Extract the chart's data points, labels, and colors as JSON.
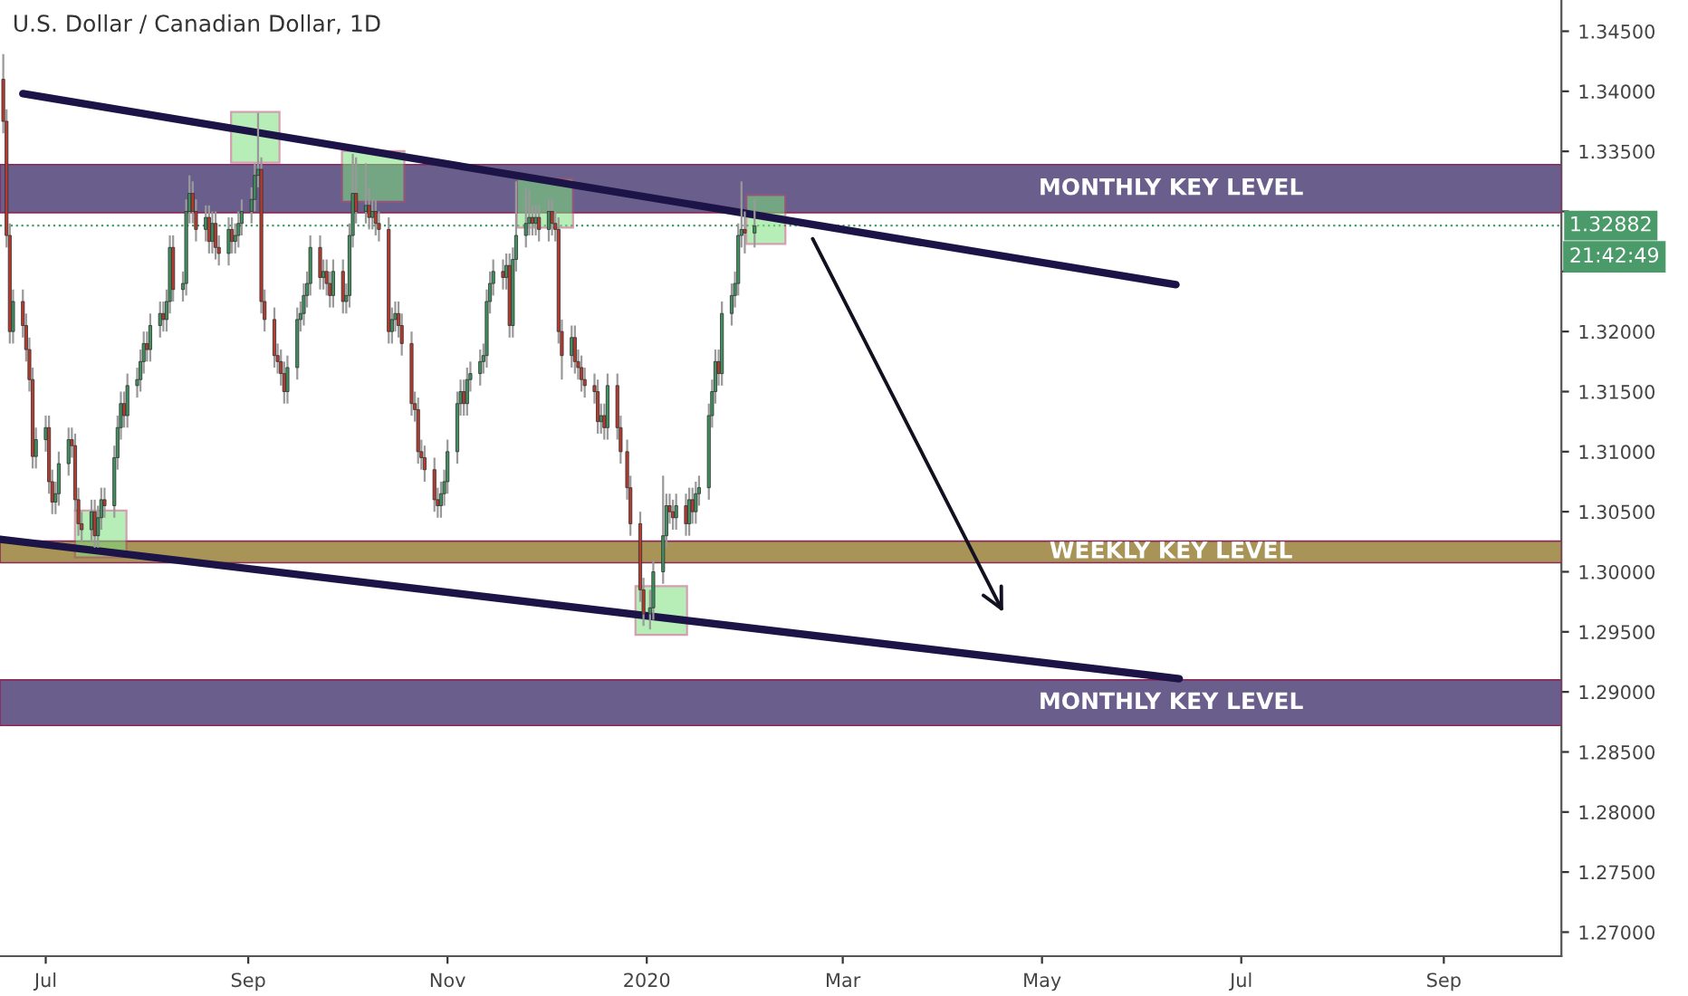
{
  "chart_data": {
    "type": "candlestick",
    "title": "U.S. Dollar / Canadian Dollar, 1D",
    "series": [
      {
        "colors": [
          "#b83a2e",
          "#b83a2e",
          "#b83a2e",
          "#3f9160",
          "#b83a2e",
          "#b83a2e",
          "#b83a2e",
          "#b83a2e",
          "#3f9160",
          "#3f9160",
          "#b83a2e",
          "#b83a2e",
          "#3f9160",
          "#3f9160",
          "#3f9160",
          "#b83a2e",
          "#b83a2e",
          "#b83a2e",
          "#b83a2e",
          "#3f9160",
          "#b83a2e",
          "#3f9160",
          "#3f9160",
          "#b83a2e",
          "#3f9160",
          "#3f9160",
          "#3f9160",
          "#b83a2e",
          "#3f9160",
          "#3f9160",
          "#3f9160",
          "#3f9160",
          "#b83a2e",
          "#3f9160",
          "#3f9160",
          "#b83a2e",
          "#3f9160",
          "#3f9160",
          "#b83a2e",
          "#3f9160",
          "#3f9160",
          "#3f9160",
          "#b83a2e",
          "#b83a2e",
          "#3f9160",
          "#b83a2e",
          "#3f9160",
          "#b83a2e",
          "#b83a2e",
          "#3f9160",
          "#b83a2e",
          "#3f9160",
          "#3f9160",
          "#3f9160",
          "#3f9160",
          "#3f9160",
          "#3f9160",
          "#b83a2e",
          "#b83a2e",
          "#b83a2e",
          "#b83a2e",
          "#b83a2e",
          "#b83a2e",
          "#3f9160",
          "#3f9160",
          "#3f9160",
          "#3f9160",
          "#3f9160",
          "#3f9160",
          "#b83a2e",
          "#3f9160",
          "#b83a2e",
          "#b83a2e",
          "#3f9160",
          "#b83a2e",
          "#3f9160",
          "#3f9160",
          "#3f9160",
          "#b83a2e",
          "#3f9160",
          "#b83a2e",
          "#3f9160",
          "#b83a2e",
          "#b83a2e",
          "#b83a2e",
          "#3f9160",
          "#3f9160",
          "#b83a2e",
          "#b83a2e",
          "#b83a2e",
          "#b83a2e",
          "#b83a2e",
          "#b83a2e",
          "#b83a2e",
          "#b83a2e",
          "#b83a2e",
          "#3f9160",
          "#3f9160",
          "#3f9160",
          "#3f9160",
          "#3f9160",
          "#b83a2e",
          "#3f9160",
          "#3f9160",
          "#3f9160",
          "#3f9160",
          "#3f9160",
          "#3f9160",
          "#3f9160",
          "#b83a2e",
          "#3f9160",
          "#b83a2e",
          "#3f9160",
          "#3f9160",
          "#3f9160",
          "#3f9160",
          "#b83a2e",
          "#3f9160",
          "#b83a2e",
          "#3f9160",
          "#b83a2e",
          "#b83a2e",
          "#b83a2e",
          "#b83a2e",
          "#3f9160",
          "#b83a2e",
          "#b83a2e",
          "#b83a2e",
          "#b83a2e",
          "#b83a2e",
          "#b83a2e",
          "#3f9160",
          "#b83a2e",
          "#3f9160",
          "#b83a2e",
          "#b83a2e",
          "#b83a2e",
          "#b83a2e",
          "#b83a2e",
          "#b83a2e",
          "#3f9160",
          "#3f9160",
          "#3f9160",
          "#3f9160",
          "#b83a2e",
          "#b83a2e",
          "#3f9160",
          "#b83a2e",
          "#3f9160",
          "#b83a2e",
          "#3f9160",
          "#3f9160",
          "#3f9160",
          "#3f9160",
          "#3f9160",
          "#b83a2e",
          "#3f9160",
          "#3f9160",
          "#3f9160",
          "#3f9160",
          "#3f9160",
          "#b83a2e",
          "#3f9160"
        ],
        "x": [
          "2019-06-18",
          "2019-06-19",
          "2019-06-20",
          "2019-06-21",
          "2019-06-24",
          "2019-06-25",
          "2019-06-26",
          "2019-06-27",
          "2019-06-28",
          "2019-07-01",
          "2019-07-02",
          "2019-07-03",
          "2019-07-04",
          "2019-07-05",
          "2019-07-08",
          "2019-07-09",
          "2019-07-10",
          "2019-07-11",
          "2019-07-12",
          "2019-07-15",
          "2019-07-16",
          "2019-07-17",
          "2019-07-18",
          "2019-07-19",
          "2019-07-22",
          "2019-07-23",
          "2019-07-24",
          "2019-07-25",
          "2019-07-26",
          "2019-07-29",
          "2019-07-30",
          "2019-07-31",
          "2019-08-01",
          "2019-08-02",
          "2019-08-05",
          "2019-08-06",
          "2019-08-07",
          "2019-08-08",
          "2019-08-09",
          "2019-08-12",
          "2019-08-13",
          "2019-08-14",
          "2019-08-15",
          "2019-08-16",
          "2019-08-19",
          "2019-08-20",
          "2019-08-21",
          "2019-08-22",
          "2019-08-23",
          "2019-08-26",
          "2019-08-27",
          "2019-08-28",
          "2019-08-29",
          "2019-08-30",
          "2019-09-02",
          "2019-09-03",
          "2019-09-04",
          "2019-09-05",
          "2019-09-06",
          "2019-09-09",
          "2019-09-10",
          "2019-09-11",
          "2019-09-12",
          "2019-09-13",
          "2019-09-16",
          "2019-09-17",
          "2019-09-18",
          "2019-09-19",
          "2019-09-20",
          "2019-09-23",
          "2019-09-24",
          "2019-09-25",
          "2019-09-26",
          "2019-09-27",
          "2019-09-30",
          "2019-10-01",
          "2019-10-02",
          "2019-10-03",
          "2019-10-04",
          "2019-10-07",
          "2019-10-08",
          "2019-10-09",
          "2019-10-10",
          "2019-10-11",
          "2019-10-14",
          "2019-10-15",
          "2019-10-16",
          "2019-10-17",
          "2019-10-18",
          "2019-10-21",
          "2019-10-22",
          "2019-10-23",
          "2019-10-24",
          "2019-10-25",
          "2019-10-28",
          "2019-10-29",
          "2019-10-30",
          "2019-10-31",
          "2019-11-01",
          "2019-11-04",
          "2019-11-05",
          "2019-11-06",
          "2019-11-07",
          "2019-11-08",
          "2019-11-11",
          "2019-11-12",
          "2019-11-13",
          "2019-11-14",
          "2019-11-15",
          "2019-11-18",
          "2019-11-19",
          "2019-11-20",
          "2019-11-21",
          "2019-11-22",
          "2019-11-25",
          "2019-11-26",
          "2019-11-27",
          "2019-11-28",
          "2019-11-29",
          "2019-12-02",
          "2019-12-03",
          "2019-12-04",
          "2019-12-05",
          "2019-12-06",
          "2019-12-09",
          "2019-12-10",
          "2019-12-11",
          "2019-12-12",
          "2019-12-13",
          "2019-12-16",
          "2019-12-17",
          "2019-12-18",
          "2019-12-19",
          "2019-12-20",
          "2019-12-23",
          "2019-12-24",
          "2019-12-26",
          "2019-12-27",
          "2019-12-30",
          "2019-12-31",
          "2020-01-02",
          "2020-01-03",
          "2020-01-06",
          "2020-01-07",
          "2020-01-08",
          "2020-01-09",
          "2020-01-10",
          "2020-01-13",
          "2020-01-14",
          "2020-01-15",
          "2020-01-16",
          "2020-01-17",
          "2020-01-20",
          "2020-01-21",
          "2020-01-22",
          "2020-01-23",
          "2020-01-24",
          "2020-01-27",
          "2020-01-28",
          "2020-01-29",
          "2020-01-30",
          "2020-01-31",
          "2020-02-03"
        ],
        "ohlc": [
          [
            1.341,
            1.3431,
            1.3365,
            1.3375
          ],
          [
            1.3375,
            1.3385,
            1.327,
            1.328
          ],
          [
            1.328,
            1.329,
            1.319,
            1.32
          ],
          [
            1.32,
            1.3235,
            1.319,
            1.3225
          ],
          [
            1.3225,
            1.3235,
            1.3195,
            1.3205
          ],
          [
            1.3205,
            1.3215,
            1.3175,
            1.3185
          ],
          [
            1.3185,
            1.3195,
            1.315,
            1.316
          ],
          [
            1.316,
            1.317,
            1.3086,
            1.3096
          ],
          [
            1.3096,
            1.312,
            1.3086,
            1.311
          ],
          [
            1.311,
            1.313,
            1.31,
            1.312
          ],
          [
            1.312,
            1.313,
            1.3065,
            1.3075
          ],
          [
            1.3075,
            1.3085,
            1.3048,
            1.3058
          ],
          [
            1.3058,
            1.3075,
            1.3048,
            1.3065
          ],
          [
            1.3065,
            1.31,
            1.3055,
            1.309
          ],
          [
            1.309,
            1.312,
            1.308,
            1.311
          ],
          [
            1.311,
            1.312,
            1.3095,
            1.3105
          ],
          [
            1.3105,
            1.3115,
            1.305,
            1.306
          ],
          [
            1.306,
            1.307,
            1.303,
            1.304
          ],
          [
            1.304,
            1.305,
            1.3025,
            1.3035
          ],
          [
            1.3035,
            1.306,
            1.3025,
            1.305
          ],
          [
            1.305,
            1.306,
            1.302,
            1.303
          ],
          [
            1.303,
            1.3055,
            1.302,
            1.3045
          ],
          [
            1.3045,
            1.307,
            1.3035,
            1.306
          ],
          [
            1.306,
            1.307,
            1.3045,
            1.3055
          ],
          [
            1.3055,
            1.3105,
            1.3045,
            1.3095
          ],
          [
            1.3095,
            1.313,
            1.3085,
            1.312
          ],
          [
            1.312,
            1.315,
            1.311,
            1.314
          ],
          [
            1.314,
            1.315,
            1.312,
            1.313
          ],
          [
            1.313,
            1.3165,
            1.312,
            1.3155
          ],
          [
            1.3155,
            1.317,
            1.3145,
            1.316
          ],
          [
            1.316,
            1.3185,
            1.315,
            1.3175
          ],
          [
            1.3175,
            1.32,
            1.3165,
            1.319
          ],
          [
            1.319,
            1.32,
            1.3175,
            1.3185
          ],
          [
            1.3185,
            1.3215,
            1.3175,
            1.3205
          ],
          [
            1.3205,
            1.3225,
            1.3195,
            1.3215
          ],
          [
            1.3215,
            1.3225,
            1.32,
            1.321
          ],
          [
            1.321,
            1.3235,
            1.32,
            1.3225
          ],
          [
            1.3225,
            1.328,
            1.3215,
            1.327
          ],
          [
            1.327,
            1.328,
            1.3225,
            1.3235
          ],
          [
            1.3235,
            1.325,
            1.3225,
            1.324
          ],
          [
            1.324,
            1.331,
            1.323,
            1.33
          ],
          [
            1.33,
            1.333,
            1.329,
            1.3315
          ],
          [
            1.3315,
            1.3325,
            1.329,
            1.33
          ],
          [
            1.33,
            1.331,
            1.3275,
            1.3285
          ],
          [
            1.3285,
            1.3305,
            1.3275,
            1.3295
          ],
          [
            1.3295,
            1.3305,
            1.3265,
            1.3275
          ],
          [
            1.3275,
            1.33,
            1.3265,
            1.329
          ],
          [
            1.329,
            1.33,
            1.326,
            1.327
          ],
          [
            1.327,
            1.328,
            1.3255,
            1.3265
          ],
          [
            1.3265,
            1.3295,
            1.3255,
            1.3285
          ],
          [
            1.3285,
            1.3295,
            1.3265,
            1.3275
          ],
          [
            1.3275,
            1.329,
            1.3265,
            1.328
          ],
          [
            1.328,
            1.33,
            1.327,
            1.329
          ],
          [
            1.329,
            1.331,
            1.328,
            1.33
          ],
          [
            1.33,
            1.332,
            1.329,
            1.331
          ],
          [
            1.331,
            1.334,
            1.33,
            1.333
          ],
          [
            1.333,
            1.3382,
            1.332,
            1.3335
          ],
          [
            1.3335,
            1.3345,
            1.3215,
            1.3225
          ],
          [
            1.3225,
            1.3235,
            1.32,
            1.321
          ],
          [
            1.321,
            1.322,
            1.317,
            1.318
          ],
          [
            1.318,
            1.319,
            1.3165,
            1.3175
          ],
          [
            1.3175,
            1.3185,
            1.3155,
            1.3165
          ],
          [
            1.3165,
            1.3175,
            1.314,
            1.315
          ],
          [
            1.315,
            1.318,
            1.314,
            1.317
          ],
          [
            1.317,
            1.322,
            1.316,
            1.321
          ],
          [
            1.321,
            1.3225,
            1.32,
            1.3215
          ],
          [
            1.3215,
            1.324,
            1.3205,
            1.323
          ],
          [
            1.323,
            1.325,
            1.322,
            1.324
          ],
          [
            1.324,
            1.328,
            1.323,
            1.327
          ],
          [
            1.327,
            1.328,
            1.3235,
            1.3245
          ],
          [
            1.3245,
            1.326,
            1.3235,
            1.325
          ],
          [
            1.325,
            1.326,
            1.323,
            1.324
          ],
          [
            1.324,
            1.325,
            1.322,
            1.323
          ],
          [
            1.323,
            1.326,
            1.322,
            1.325
          ],
          [
            1.325,
            1.326,
            1.3215,
            1.3225
          ],
          [
            1.3225,
            1.324,
            1.3215,
            1.323
          ],
          [
            1.323,
            1.329,
            1.322,
            1.328
          ],
          [
            1.328,
            1.3348,
            1.327,
            1.3315
          ],
          [
            1.3315,
            1.3345,
            1.329,
            1.33
          ],
          [
            1.33,
            1.334,
            1.329,
            1.3305
          ],
          [
            1.3305,
            1.332,
            1.3285,
            1.3295
          ],
          [
            1.3295,
            1.331,
            1.3285,
            1.33
          ],
          [
            1.33,
            1.331,
            1.328,
            1.329
          ],
          [
            1.329,
            1.33,
            1.3275,
            1.3285
          ],
          [
            1.3285,
            1.3295,
            1.319,
            1.32
          ],
          [
            1.32,
            1.322,
            1.319,
            1.321
          ],
          [
            1.321,
            1.3225,
            1.32,
            1.3215
          ],
          [
            1.3215,
            1.3225,
            1.3195,
            1.3205
          ],
          [
            1.3205,
            1.3215,
            1.318,
            1.319
          ],
          [
            1.319,
            1.32,
            1.313,
            1.314
          ],
          [
            1.314,
            1.315,
            1.3125,
            1.3135
          ],
          [
            1.3135,
            1.3145,
            1.309,
            1.31
          ],
          [
            1.31,
            1.311,
            1.3085,
            1.3095
          ],
          [
            1.3095,
            1.3105,
            1.3075,
            1.3085
          ],
          [
            1.3085,
            1.3095,
            1.305,
            1.306
          ],
          [
            1.306,
            1.307,
            1.3045,
            1.3055
          ],
          [
            1.3055,
            1.3075,
            1.3045,
            1.3065
          ],
          [
            1.3065,
            1.3085,
            1.3055,
            1.3075
          ],
          [
            1.3075,
            1.311,
            1.3065,
            1.31
          ],
          [
            1.31,
            1.315,
            1.309,
            1.314
          ],
          [
            1.314,
            1.316,
            1.313,
            1.315
          ],
          [
            1.315,
            1.316,
            1.313,
            1.314
          ],
          [
            1.314,
            1.317,
            1.313,
            1.316
          ],
          [
            1.316,
            1.3175,
            1.315,
            1.3165
          ],
          [
            1.3165,
            1.3185,
            1.3155,
            1.3175
          ],
          [
            1.3175,
            1.319,
            1.3165,
            1.318
          ],
          [
            1.318,
            1.3235,
            1.317,
            1.3225
          ],
          [
            1.3225,
            1.325,
            1.3215,
            1.324
          ],
          [
            1.324,
            1.326,
            1.323,
            1.325
          ],
          [
            1.325,
            1.326,
            1.3235,
            1.3245
          ],
          [
            1.3245,
            1.3265,
            1.3235,
            1.3255
          ],
          [
            1.3255,
            1.3265,
            1.3195,
            1.3205
          ],
          [
            1.3205,
            1.327,
            1.3195,
            1.326
          ],
          [
            1.326,
            1.3325,
            1.325,
            1.328
          ],
          [
            1.328,
            1.332,
            1.327,
            1.329
          ],
          [
            1.329,
            1.3318,
            1.328,
            1.3295
          ],
          [
            1.3295,
            1.3305,
            1.328,
            1.329
          ],
          [
            1.329,
            1.3305,
            1.328,
            1.3295
          ],
          [
            1.3295,
            1.3305,
            1.3275,
            1.3285
          ],
          [
            1.3285,
            1.331,
            1.3275,
            1.33
          ],
          [
            1.33,
            1.331,
            1.328,
            1.329
          ],
          [
            1.329,
            1.33,
            1.3275,
            1.3285
          ],
          [
            1.3285,
            1.3295,
            1.319,
            1.32
          ],
          [
            1.32,
            1.321,
            1.316,
            1.318
          ],
          [
            1.318,
            1.3205,
            1.317,
            1.3195
          ],
          [
            1.3195,
            1.3205,
            1.3165,
            1.3175
          ],
          [
            1.3175,
            1.3185,
            1.316,
            1.317
          ],
          [
            1.317,
            1.318,
            1.315,
            1.316
          ],
          [
            1.316,
            1.317,
            1.3145,
            1.3155
          ],
          [
            1.3155,
            1.3165,
            1.314,
            1.315
          ],
          [
            1.315,
            1.316,
            1.3115,
            1.3125
          ],
          [
            1.3125,
            1.314,
            1.3115,
            1.313
          ],
          [
            1.313,
            1.314,
            1.311,
            1.312
          ],
          [
            1.312,
            1.3165,
            1.311,
            1.3155
          ],
          [
            1.3155,
            1.3165,
            1.311,
            1.312
          ],
          [
            1.312,
            1.313,
            1.309,
            1.31
          ],
          [
            1.31,
            1.311,
            1.306,
            1.307
          ],
          [
            1.307,
            1.308,
            1.303,
            1.304
          ],
          [
            1.304,
            1.305,
            1.2975,
            1.2985
          ],
          [
            1.2985,
            1.2995,
            1.2955,
            1.2965
          ],
          [
            1.2965,
            1.2985,
            1.2952,
            1.297
          ],
          [
            1.297,
            1.301,
            1.296,
            1.3
          ],
          [
            1.3,
            1.308,
            1.299,
            1.303
          ],
          [
            1.303,
            1.3065,
            1.302,
            1.3055
          ],
          [
            1.3055,
            1.3065,
            1.304,
            1.305
          ],
          [
            1.305,
            1.306,
            1.3035,
            1.3045
          ],
          [
            1.3045,
            1.3065,
            1.3035,
            1.3055
          ],
          [
            1.3055,
            1.3065,
            1.303,
            1.304
          ],
          [
            1.304,
            1.307,
            1.303,
            1.306
          ],
          [
            1.306,
            1.307,
            1.304,
            1.305
          ],
          [
            1.305,
            1.3075,
            1.304,
            1.3065
          ],
          [
            1.3065,
            1.308,
            1.3055,
            1.307
          ],
          [
            1.307,
            1.314,
            1.306,
            1.313
          ],
          [
            1.313,
            1.316,
            1.312,
            1.315
          ],
          [
            1.315,
            1.3185,
            1.314,
            1.3175
          ],
          [
            1.3175,
            1.3185,
            1.3155,
            1.3165
          ],
          [
            1.3165,
            1.3225,
            1.3155,
            1.3215
          ],
          [
            1.3215,
            1.324,
            1.3205,
            1.323
          ],
          [
            1.323,
            1.325,
            1.322,
            1.324
          ],
          [
            1.324,
            1.329,
            1.323,
            1.328
          ],
          [
            1.328,
            1.3325,
            1.327,
            1.3285
          ],
          [
            1.3285,
            1.33,
            1.3265,
            1.3282
          ],
          [
            1.3282,
            1.331,
            1.327,
            1.3288
          ]
        ]
      },
      {
        "type": "line",
        "color": "#1c1446",
        "x": [
          "2019-06-24",
          "2020-06-11"
        ],
        "values": [
          1.3398,
          1.3239
        ]
      },
      {
        "type": "line",
        "color": "#1c1446",
        "x": [
          "2019-06-17",
          "2020-06-12"
        ],
        "values": [
          1.3027,
          1.2911
        ]
      }
    ],
    "bands": [
      {
        "axis": "y",
        "from": 1.3299,
        "to": 1.3339,
        "label": "MONTHLY KEY LEVEL",
        "color": "#6a5f8c"
      },
      {
        "axis": "y",
        "from": 1.30075,
        "to": 1.30255,
        "label": "WEEKLY KEY LEVEL",
        "color": "#a89456"
      },
      {
        "axis": "y",
        "from": 1.2872,
        "to": 1.291,
        "label": "MONTHLY KEY LEVEL",
        "color": "#6a5f8c"
      }
    ],
    "ref_lines": [
      {
        "axis": "y",
        "value": 1.32882,
        "label": "1.32882",
        "color": "#4a9a6a",
        "line_style": "dotted"
      }
    ],
    "annotations": [
      "21:42:49"
    ],
    "xlim": [
      "2019-06-17",
      "2020-10-07"
    ],
    "xticks": [
      {
        "value": "2019-07-01",
        "label": "Jul"
      },
      {
        "value": "2019-09-01",
        "label": "Sep"
      },
      {
        "value": "2019-11-01",
        "label": "Nov"
      },
      {
        "value": "2020-01-01",
        "label": "2020"
      },
      {
        "value": "2020-03-01",
        "label": "Mar"
      },
      {
        "value": "2020-05-01",
        "label": "May"
      },
      {
        "value": "2020-07-01",
        "label": "Jul"
      },
      {
        "value": "2020-09-01",
        "label": "Sep"
      }
    ],
    "ylim": [
      1.268,
      1.3476
    ],
    "yticks": [
      {
        "value": 1.27,
        "label": "1.27000"
      },
      {
        "value": 1.275,
        "label": "1.27500"
      },
      {
        "value": 1.28,
        "label": "1.28000"
      },
      {
        "value": 1.285,
        "label": "1.28500"
      },
      {
        "value": 1.29,
        "label": "1.29000"
      },
      {
        "value": 1.295,
        "label": "1.29500"
      },
      {
        "value": 1.3,
        "label": "1.30000"
      },
      {
        "value": 1.305,
        "label": "1.30500"
      },
      {
        "value": 1.31,
        "label": "1.31000"
      },
      {
        "value": 1.315,
        "label": "1.31500"
      },
      {
        "value": 1.32,
        "label": "1.32000"
      },
      {
        "value": 1.325,
        "label": null
      },
      {
        "value": 1.33,
        "label": null
      },
      {
        "value": 1.335,
        "label": "1.33500"
      },
      {
        "value": 1.34,
        "label": "1.34000"
      },
      {
        "value": 1.345,
        "label": "1.34500"
      }
    ],
    "grid": false,
    "legend": false
  }
}
